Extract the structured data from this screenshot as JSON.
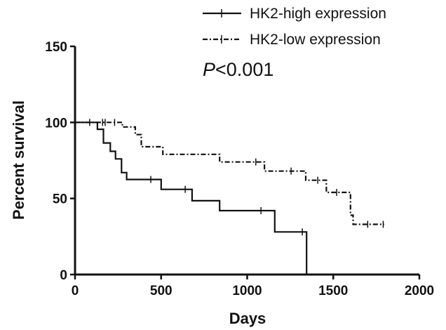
{
  "chart_data": {
    "type": "line",
    "subtype": "kaplan-meier",
    "xlabel": "Days",
    "ylabel": "Percent survival",
    "xlim": [
      0,
      2000
    ],
    "ylim": [
      0,
      150
    ],
    "xticks": [
      "0",
      "500",
      "1000",
      "1500",
      "2000"
    ],
    "yticks": [
      "0",
      "50",
      "100",
      "150"
    ],
    "grid": false,
    "legend_position": "top-right",
    "annotation": {
      "italic": "P",
      "rest": "<0.001"
    },
    "series": [
      {
        "name": "HK2-high expression",
        "style": "solid",
        "color": "#111111",
        "steps": [
          [
            0,
            100
          ],
          [
            130,
            100
          ],
          [
            130,
            95.5
          ],
          [
            165,
            95.5
          ],
          [
            165,
            86.5
          ],
          [
            205,
            86.5
          ],
          [
            205,
            81
          ],
          [
            235,
            81
          ],
          [
            235,
            76
          ],
          [
            270,
            76
          ],
          [
            270,
            67
          ],
          [
            300,
            67
          ],
          [
            300,
            62.5
          ],
          [
            500,
            62.5
          ],
          [
            500,
            56
          ],
          [
            680,
            56
          ],
          [
            680,
            48.5
          ],
          [
            840,
            48.5
          ],
          [
            840,
            42
          ],
          [
            1160,
            42
          ],
          [
            1160,
            28
          ],
          [
            1345,
            28
          ],
          [
            1345,
            0
          ]
        ],
        "censored": [
          [
            440,
            62.5
          ],
          [
            640,
            56
          ],
          [
            1080,
            42
          ],
          [
            1320,
            28
          ]
        ]
      },
      {
        "name": "HK2-low expression",
        "style": "dash-dot",
        "color": "#111111",
        "steps": [
          [
            0,
            100
          ],
          [
            275,
            100
          ],
          [
            275,
            97
          ],
          [
            350,
            97
          ],
          [
            350,
            92
          ],
          [
            385,
            92
          ],
          [
            385,
            84
          ],
          [
            510,
            84
          ],
          [
            510,
            79
          ],
          [
            840,
            79
          ],
          [
            840,
            74
          ],
          [
            1100,
            74
          ],
          [
            1100,
            68
          ],
          [
            1340,
            68
          ],
          [
            1340,
            62
          ],
          [
            1460,
            62
          ],
          [
            1460,
            54
          ],
          [
            1600,
            54
          ],
          [
            1600,
            39
          ],
          [
            1615,
            39
          ],
          [
            1615,
            33
          ],
          [
            1795,
            33
          ]
        ],
        "censored": [
          [
            85,
            100
          ],
          [
            160,
            100
          ],
          [
            175,
            100
          ],
          [
            230,
            100
          ],
          [
            1050,
            74
          ],
          [
            1255,
            68
          ],
          [
            1410,
            62
          ],
          [
            1520,
            54
          ],
          [
            1700,
            33
          ],
          [
            1790,
            33
          ]
        ]
      }
    ]
  }
}
